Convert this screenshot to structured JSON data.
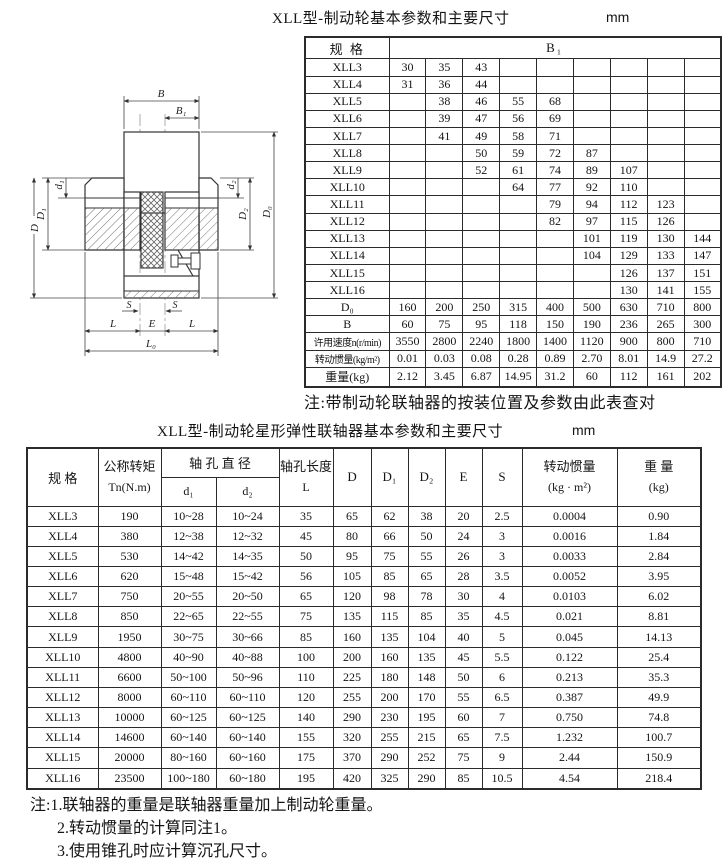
{
  "page": {
    "table1_title": "XLL型-制动轮基本参数和主要尺寸",
    "table1_unit": "mm",
    "table2_title": "XLL型-制动轮星形弹性联轴器基本参数和主要尺寸",
    "table2_unit": "mm"
  },
  "drawing": {
    "labels": {
      "B": "B",
      "B1": "B₁",
      "D": "D",
      "D1": "D₁",
      "d1": "d₁",
      "d2": "d₂",
      "D2": "D₂",
      "D0": "D₀",
      "S_left": "S",
      "S_right": "S",
      "L_left": "L",
      "E": "E",
      "L_right": "L",
      "L0": "L₀"
    }
  },
  "table1": {
    "header_spec": "规 格",
    "header_b1": "B₁",
    "spec_rows": [
      {
        "label": "XLL3",
        "cells": [
          "30",
          "35",
          "43",
          "",
          "",
          "",
          "",
          "",
          ""
        ]
      },
      {
        "label": "XLL4",
        "cells": [
          "31",
          "36",
          "44",
          "",
          "",
          "",
          "",
          "",
          ""
        ]
      },
      {
        "label": "XLL5",
        "cells": [
          "",
          "38",
          "46",
          "55",
          "68",
          "",
          "",
          "",
          ""
        ]
      },
      {
        "label": "XLL6",
        "cells": [
          "",
          "39",
          "47",
          "56",
          "69",
          "",
          "",
          "",
          ""
        ]
      },
      {
        "label": "XLL7",
        "cells": [
          "",
          "41",
          "49",
          "58",
          "71",
          "",
          "",
          "",
          ""
        ]
      },
      {
        "label": "XLL8",
        "cells": [
          "",
          "",
          "50",
          "59",
          "72",
          "87",
          "",
          "",
          ""
        ]
      },
      {
        "label": "XLL9",
        "cells": [
          "",
          "",
          "52",
          "61",
          "74",
          "89",
          "107",
          "",
          ""
        ]
      },
      {
        "label": "XLL10",
        "cells": [
          "",
          "",
          "",
          "64",
          "77",
          "92",
          "110",
          "",
          ""
        ]
      },
      {
        "label": "XLL11",
        "cells": [
          "",
          "",
          "",
          "",
          "79",
          "94",
          "112",
          "123",
          ""
        ]
      },
      {
        "label": "XLL12",
        "cells": [
          "",
          "",
          "",
          "",
          "82",
          "97",
          "115",
          "126",
          ""
        ]
      },
      {
        "label": "XLL13",
        "cells": [
          "",
          "",
          "",
          "",
          "",
          "101",
          "119",
          "130",
          "144"
        ]
      },
      {
        "label": "XLL14",
        "cells": [
          "",
          "",
          "",
          "",
          "",
          "104",
          "129",
          "133",
          "147"
        ]
      },
      {
        "label": "XLL15",
        "cells": [
          "",
          "",
          "",
          "",
          "",
          "",
          "126",
          "137",
          "151"
        ]
      },
      {
        "label": "XLL16",
        "cells": [
          "",
          "",
          "",
          "",
          "",
          "",
          "130",
          "141",
          "155"
        ]
      }
    ],
    "param_rows": [
      {
        "label": "D₀",
        "cells": [
          "160",
          "200",
          "250",
          "315",
          "400",
          "500",
          "630",
          "710",
          "800"
        ]
      },
      {
        "label": "B",
        "cells": [
          "60",
          "75",
          "95",
          "118",
          "150",
          "190",
          "236",
          "265",
          "300"
        ]
      },
      {
        "label": "许用速度n(r/min)",
        "cells": [
          "3550",
          "2800",
          "2240",
          "1800",
          "1400",
          "1120",
          "900",
          "800",
          "710"
        ]
      },
      {
        "label": "转动惯量(kg/m²)",
        "cells": [
          "0.01",
          "0.03",
          "0.08",
          "0.28",
          "0.89",
          "2.70",
          "8.01",
          "14.9",
          "27.2"
        ]
      },
      {
        "label": "重量(kg)",
        "cells": [
          "2.12",
          "3.45",
          "6.87",
          "14.95",
          "31.2",
          "60",
          "112",
          "161",
          "202"
        ]
      }
    ],
    "note": "注:带制动轮联轴器的按装位置及参数由此表查对"
  },
  "table2": {
    "headers": {
      "spec": "规  格",
      "torque_line1": "公称转矩",
      "torque_line2": "Tn(N.m)",
      "bore_dia": "轴 孔 直 径",
      "d1": "d₁",
      "d2": "d₂",
      "bore_len_line1": "轴孔长度",
      "bore_len_line2": "L",
      "D": "D",
      "D1": "D₁",
      "D2": "D₂",
      "E": "E",
      "S": "S",
      "inertia_line1": "转动惯量",
      "inertia_line2": "(kg · m²)",
      "weight_line1": "重 量",
      "weight_line2": "(kg)"
    },
    "rows": [
      [
        "XLL3",
        "190",
        "10~28",
        "10~24",
        "35",
        "65",
        "62",
        "38",
        "20",
        "2.5",
        "0.0004",
        "0.90"
      ],
      [
        "XLL4",
        "380",
        "12~38",
        "12~32",
        "45",
        "80",
        "66",
        "50",
        "24",
        "3",
        "0.0016",
        "1.84"
      ],
      [
        "XLL5",
        "530",
        "14~42",
        "14~35",
        "50",
        "95",
        "75",
        "55",
        "26",
        "3",
        "0.0033",
        "2.84"
      ],
      [
        "XLL6",
        "620",
        "15~48",
        "15~42",
        "56",
        "105",
        "85",
        "65",
        "28",
        "3.5",
        "0.0052",
        "3.95"
      ],
      [
        "XLL7",
        "750",
        "20~55",
        "20~50",
        "65",
        "120",
        "98",
        "78",
        "30",
        "4",
        "0.0103",
        "6.02"
      ],
      [
        "XLL8",
        "850",
        "22~65",
        "22~55",
        "75",
        "135",
        "115",
        "85",
        "35",
        "4.5",
        "0.021",
        "8.81"
      ],
      [
        "XLL9",
        "1950",
        "30~75",
        "30~66",
        "85",
        "160",
        "135",
        "104",
        "40",
        "5",
        "0.045",
        "14.13"
      ],
      [
        "XLL10",
        "4800",
        "40~90",
        "40~88",
        "100",
        "200",
        "160",
        "135",
        "45",
        "5.5",
        "0.122",
        "25.4"
      ],
      [
        "XLL11",
        "6600",
        "50~100",
        "50~96",
        "110",
        "225",
        "180",
        "148",
        "50",
        "6",
        "0.213",
        "35.3"
      ],
      [
        "XLL12",
        "8000",
        "60~110",
        "60~110",
        "120",
        "255",
        "200",
        "170",
        "55",
        "6.5",
        "0.387",
        "49.9"
      ],
      [
        "XLL13",
        "10000",
        "60~125",
        "60~125",
        "140",
        "290",
        "230",
        "195",
        "60",
        "7",
        "0.750",
        "74.8"
      ],
      [
        "XLL14",
        "14600",
        "60~140",
        "60~140",
        "155",
        "320",
        "255",
        "215",
        "65",
        "7.5",
        "1.232",
        "100.7"
      ],
      [
        "XLL15",
        "20000",
        "80~160",
        "60~160",
        "175",
        "370",
        "290",
        "252",
        "75",
        "9",
        "2.44",
        "150.9"
      ],
      [
        "XLL16",
        "23500",
        "100~180",
        "60~180",
        "195",
        "420",
        "325",
        "290",
        "85",
        "10.5",
        "4.54",
        "218.4"
      ]
    ]
  },
  "footnotes": [
    "注:1.联轴器的重量是联轴器重量加上制动轮重量。",
    "2.转动惯量的计算同注1。",
    "3.使用锥孔时应计算沉孔尺寸。"
  ]
}
